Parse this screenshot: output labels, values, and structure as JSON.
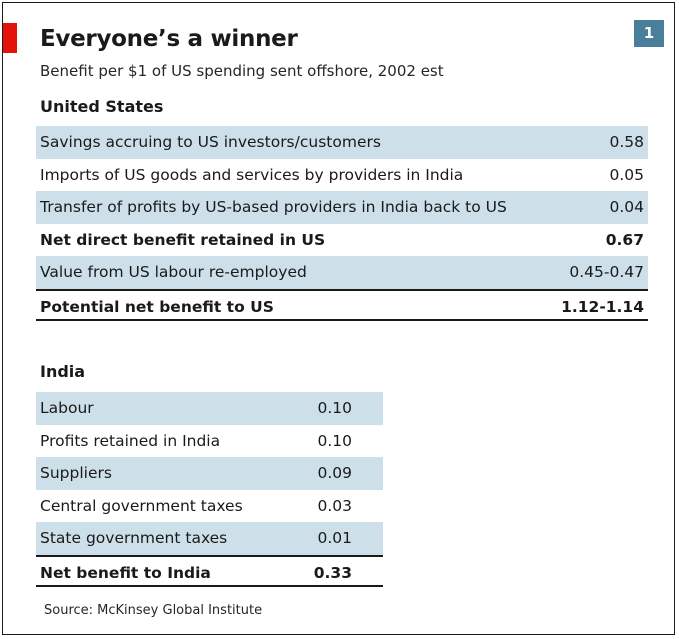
{
  "header": {
    "title": "Everyone’s a winner",
    "subtitle": "Benefit per $1 of US spending sent offshore, 2002 est",
    "badge": "1"
  },
  "chart_data": {
    "type": "table",
    "tables": [
      {
        "heading": "United States",
        "rows": [
          {
            "label": "Savings accruing to US investors/customers",
            "value": "0.58",
            "shaded": true,
            "bold": false
          },
          {
            "label": "Imports of US goods and services by providers in India",
            "value": "0.05",
            "shaded": false,
            "bold": false
          },
          {
            "label": "Transfer of profits by US-based providers in India back to US",
            "value": "0.04",
            "shaded": true,
            "bold": false
          },
          {
            "label": "Net direct benefit retained in US",
            "value": "0.67",
            "shaded": false,
            "bold": true
          },
          {
            "label": "Value from US labour re-employed",
            "value": "0.45-0.47",
            "shaded": true,
            "bold": false
          },
          {
            "label": "Potential net benefit to US",
            "value": "1.12-1.14",
            "shaded": false,
            "bold": true
          }
        ]
      },
      {
        "heading": "India",
        "rows": [
          {
            "label": "Labour",
            "value": "0.10",
            "shaded": true,
            "bold": false
          },
          {
            "label": "Profits retained in India",
            "value": "0.10",
            "shaded": false,
            "bold": false
          },
          {
            "label": "Suppliers",
            "value": "0.09",
            "shaded": true,
            "bold": false
          },
          {
            "label": "Central government taxes",
            "value": "0.03",
            "shaded": false,
            "bold": false
          },
          {
            "label": "State government taxes",
            "value": "0.01",
            "shaded": true,
            "bold": false
          },
          {
            "label": "Net benefit to India",
            "value": "0.33",
            "shaded": false,
            "bold": true
          }
        ]
      }
    ]
  },
  "source": "Source: McKinsey Global Institute"
}
